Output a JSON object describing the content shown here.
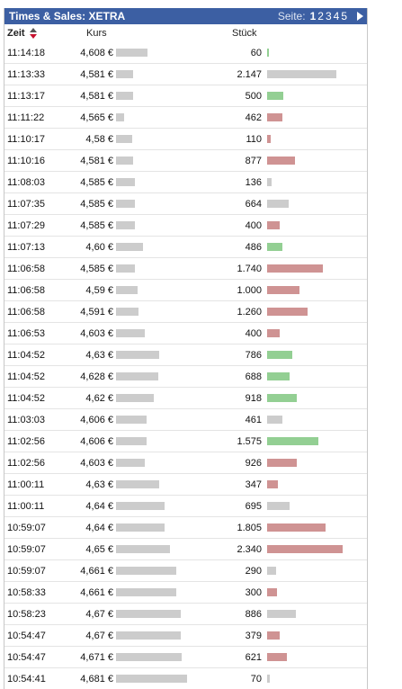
{
  "widget": {
    "title": "Times & Sales: XETRA",
    "pager_label": "Seite:",
    "pages": [
      "1",
      "2",
      "3",
      "4",
      "5"
    ],
    "active_page": "1",
    "next_icon": "triangle-right-icon"
  },
  "columns": {
    "zeit": "Zeit",
    "kurs": "Kurs",
    "stueck": "Stück",
    "sort_icon": "sort-arrows-icon"
  },
  "colors": {
    "header_bg": "#3c5fa3",
    "neutral": "#cccccc",
    "up": "#93cf93",
    "down": "#cf9393"
  },
  "trades": [
    {
      "time": "11:14:18",
      "kurs": "4,608 €",
      "price": 4.608,
      "stueck": "60",
      "volume": 60,
      "tick": "up"
    },
    {
      "time": "11:13:33",
      "kurs": "4,581 €",
      "price": 4.581,
      "stueck": "2.147",
      "volume": 2147,
      "tick": "neutral"
    },
    {
      "time": "11:13:17",
      "kurs": "4,581 €",
      "price": 4.581,
      "stueck": "500",
      "volume": 500,
      "tick": "up"
    },
    {
      "time": "11:11:22",
      "kurs": "4,565 €",
      "price": 4.565,
      "stueck": "462",
      "volume": 462,
      "tick": "down"
    },
    {
      "time": "11:10:17",
      "kurs": "4,58 €",
      "price": 4.58,
      "stueck": "110",
      "volume": 110,
      "tick": "down"
    },
    {
      "time": "11:10:16",
      "kurs": "4,581 €",
      "price": 4.581,
      "stueck": "877",
      "volume": 877,
      "tick": "down"
    },
    {
      "time": "11:08:03",
      "kurs": "4,585 €",
      "price": 4.585,
      "stueck": "136",
      "volume": 136,
      "tick": "neutral"
    },
    {
      "time": "11:07:35",
      "kurs": "4,585 €",
      "price": 4.585,
      "stueck": "664",
      "volume": 664,
      "tick": "neutral"
    },
    {
      "time": "11:07:29",
      "kurs": "4,585 €",
      "price": 4.585,
      "stueck": "400",
      "volume": 400,
      "tick": "down"
    },
    {
      "time": "11:07:13",
      "kurs": "4,60 €",
      "price": 4.6,
      "stueck": "486",
      "volume": 486,
      "tick": "up"
    },
    {
      "time": "11:06:58",
      "kurs": "4,585 €",
      "price": 4.585,
      "stueck": "1.740",
      "volume": 1740,
      "tick": "down"
    },
    {
      "time": "11:06:58",
      "kurs": "4,59 €",
      "price": 4.59,
      "stueck": "1.000",
      "volume": 1000,
      "tick": "down"
    },
    {
      "time": "11:06:58",
      "kurs": "4,591 €",
      "price": 4.591,
      "stueck": "1.260",
      "volume": 1260,
      "tick": "down"
    },
    {
      "time": "11:06:53",
      "kurs": "4,603 €",
      "price": 4.603,
      "stueck": "400",
      "volume": 400,
      "tick": "down"
    },
    {
      "time": "11:04:52",
      "kurs": "4,63 €",
      "price": 4.63,
      "stueck": "786",
      "volume": 786,
      "tick": "up"
    },
    {
      "time": "11:04:52",
      "kurs": "4,628 €",
      "price": 4.628,
      "stueck": "688",
      "volume": 688,
      "tick": "up"
    },
    {
      "time": "11:04:52",
      "kurs": "4,62 €",
      "price": 4.62,
      "stueck": "918",
      "volume": 918,
      "tick": "up"
    },
    {
      "time": "11:03:03",
      "kurs": "4,606 €",
      "price": 4.606,
      "stueck": "461",
      "volume": 461,
      "tick": "neutral"
    },
    {
      "time": "11:02:56",
      "kurs": "4,606 €",
      "price": 4.606,
      "stueck": "1.575",
      "volume": 1575,
      "tick": "up"
    },
    {
      "time": "11:02:56",
      "kurs": "4,603 €",
      "price": 4.603,
      "stueck": "926",
      "volume": 926,
      "tick": "down"
    },
    {
      "time": "11:00:11",
      "kurs": "4,63 €",
      "price": 4.63,
      "stueck": "347",
      "volume": 347,
      "tick": "down"
    },
    {
      "time": "11:00:11",
      "kurs": "4,64 €",
      "price": 4.64,
      "stueck": "695",
      "volume": 695,
      "tick": "neutral"
    },
    {
      "time": "10:59:07",
      "kurs": "4,64 €",
      "price": 4.64,
      "stueck": "1.805",
      "volume": 1805,
      "tick": "down"
    },
    {
      "time": "10:59:07",
      "kurs": "4,65 €",
      "price": 4.65,
      "stueck": "2.340",
      "volume": 2340,
      "tick": "down"
    },
    {
      "time": "10:59:07",
      "kurs": "4,661 €",
      "price": 4.661,
      "stueck": "290",
      "volume": 290,
      "tick": "neutral"
    },
    {
      "time": "10:58:33",
      "kurs": "4,661 €",
      "price": 4.661,
      "stueck": "300",
      "volume": 300,
      "tick": "down"
    },
    {
      "time": "10:58:23",
      "kurs": "4,67 €",
      "price": 4.67,
      "stueck": "886",
      "volume": 886,
      "tick": "neutral"
    },
    {
      "time": "10:54:47",
      "kurs": "4,67 €",
      "price": 4.67,
      "stueck": "379",
      "volume": 379,
      "tick": "down"
    },
    {
      "time": "10:54:47",
      "kurs": "4,671 €",
      "price": 4.671,
      "stueck": "621",
      "volume": 621,
      "tick": "down"
    },
    {
      "time": "10:54:41",
      "kurs": "4,681 €",
      "price": 4.681,
      "stueck": "70",
      "volume": 70,
      "tick": "neutral"
    }
  ]
}
